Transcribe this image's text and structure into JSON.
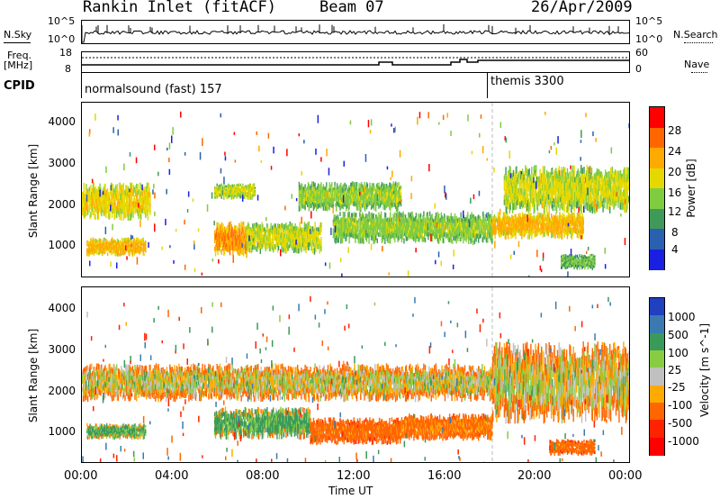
{
  "header": {
    "station": "Rankin Inlet (fitACF)",
    "beam": "Beam 07",
    "date": "26/Apr/2009"
  },
  "top_panel": {
    "left_label": "N.Sky",
    "right_label": "N.Search",
    "left_ticks": [
      "10^5",
      "10^0"
    ],
    "right_ticks": [
      "10^5",
      "10^0"
    ]
  },
  "freq_panel": {
    "left_label_1": "Freq.",
    "left_label_2": "[MHz]",
    "right_label": "Nave",
    "left_ticks": [
      "18",
      "8"
    ],
    "right_ticks": [
      "60",
      "0"
    ]
  },
  "cpid": {
    "label": "CPID",
    "segments": [
      {
        "name": "normalsound (fast) 157",
        "start_hour": 0
      },
      {
        "name": "themis 3300",
        "start_hour": 18
      }
    ]
  },
  "power_panel": {
    "y_label": "Slant Range [km]",
    "y_ticks": [
      "4000",
      "3000",
      "2000",
      "1000"
    ],
    "colorbar_label": "Power [dB]",
    "colorbar_ticks": [
      "28",
      "24",
      "20",
      "16",
      "12",
      "8",
      "4"
    ],
    "colorbar_colors": [
      "#ff0000",
      "#ff6600",
      "#ffaa00",
      "#e5d800",
      "#80cc40",
      "#3f9a5a",
      "#2a60b0",
      "#1a20e0"
    ]
  },
  "velocity_panel": {
    "y_label": "Slant Range [km]",
    "y_ticks": [
      "4000",
      "3000",
      "2000",
      "1000"
    ],
    "colorbar_label": "Velocity [m s^-1]",
    "colorbar_ticks": [
      "1000",
      "500",
      "100",
      "25",
      "-25",
      "-100",
      "-500",
      "-1000"
    ],
    "colorbar_colors": [
      "#2040c0",
      "#3a7ab0",
      "#3a9a5a",
      "#88cc44",
      "#c0c0c0",
      "#ffaa00",
      "#ff6600",
      "#ff2200",
      "#ff0000"
    ]
  },
  "x_axis": {
    "label": "Time UT",
    "ticks": [
      "00:00",
      "04:00",
      "08:00",
      "12:00",
      "16:00",
      "20:00",
      "00:00"
    ]
  },
  "chart_data": [
    {
      "type": "heatmap",
      "title": "Power",
      "xlabel": "Time UT",
      "ylabel": "Slant Range [km]",
      "xlim": [
        0,
        24
      ],
      "ylim": [
        180,
        4500
      ],
      "zlabel": "Power [dB]",
      "zlim": [
        0,
        30
      ],
      "bands": [
        {
          "t0": 0.0,
          "t1": 3.0,
          "r0": 1700,
          "r1": 2400,
          "level": 18
        },
        {
          "t0": 0.2,
          "t1": 2.8,
          "r0": 750,
          "r1": 1100,
          "level": 20
        },
        {
          "t0": 5.8,
          "t1": 7.6,
          "r0": 2150,
          "r1": 2450,
          "level": 16
        },
        {
          "t0": 5.8,
          "t1": 7.2,
          "r0": 800,
          "r1": 1450,
          "level": 22
        },
        {
          "t0": 7.2,
          "t1": 10.5,
          "r0": 850,
          "r1": 1450,
          "level": 16
        },
        {
          "t0": 9.5,
          "t1": 14.0,
          "r0": 1900,
          "r1": 2450,
          "level": 14
        },
        {
          "t0": 11.0,
          "t1": 18.0,
          "r0": 1100,
          "r1": 1700,
          "level": 14
        },
        {
          "t0": 18.0,
          "t1": 22.0,
          "r0": 1200,
          "r1": 1700,
          "level": 20
        },
        {
          "t0": 18.5,
          "t1": 24.0,
          "r0": 1900,
          "r1": 2800,
          "level": 16
        },
        {
          "t0": 21.0,
          "t1": 22.5,
          "r0": 400,
          "r1": 700,
          "level": 12
        }
      ]
    },
    {
      "type": "heatmap",
      "title": "Velocity",
      "xlabel": "Time UT",
      "ylabel": "Slant Range [km]",
      "xlim": [
        0,
        24
      ],
      "ylim": [
        180,
        4500
      ],
      "zlabel": "Velocity [m s^-1]",
      "zlim": [
        -1000,
        1000
      ],
      "bands": [
        {
          "t0": 0.0,
          "t1": 18.0,
          "r0": 1800,
          "r1": 2500,
          "level": 0
        },
        {
          "t0": 0.2,
          "t1": 2.8,
          "r0": 800,
          "r1": 1100,
          "level": 150
        },
        {
          "t0": 5.8,
          "t1": 10.0,
          "r0": 850,
          "r1": 1450,
          "level": 150
        },
        {
          "t0": 10.0,
          "t1": 14.0,
          "r0": 700,
          "r1": 1200,
          "level": -200
        },
        {
          "t0": 14.0,
          "t1": 18.0,
          "r0": 800,
          "r1": 1300,
          "level": -150
        },
        {
          "t0": 18.0,
          "t1": 24.0,
          "r0": 1400,
          "r1": 2900,
          "level": 0
        },
        {
          "t0": 20.5,
          "t1": 22.5,
          "r0": 400,
          "r1": 700,
          "level": -200
        }
      ]
    }
  ]
}
